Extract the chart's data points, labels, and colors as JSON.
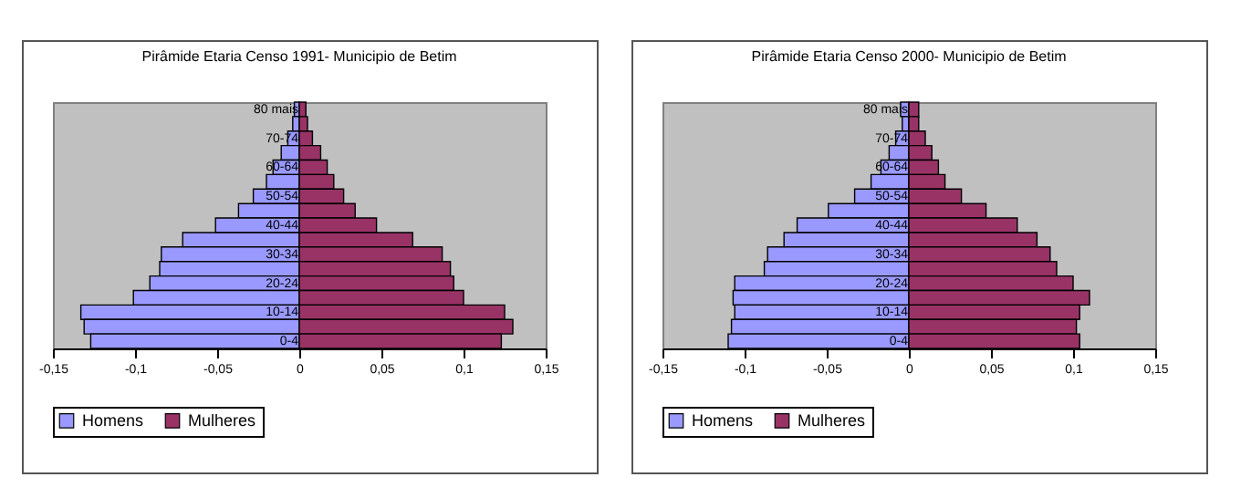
{
  "chart_data": [
    {
      "type": "bar",
      "orientation": "horizontal",
      "stacked": true,
      "title": "Pirâmide Etaria Censo 1991- Municipio de Betim",
      "categories": [
        "80 mais",
        null,
        "70-74",
        null,
        "60-64",
        null,
        "50-54",
        null,
        "40-44",
        null,
        "30-34",
        null,
        "20-24",
        null,
        "10-14",
        null,
        "0-4"
      ],
      "series": [
        {
          "name": "Homens",
          "color": "#9999ff",
          "values": [
            -0.003,
            -0.004,
            -0.007,
            -0.011,
            -0.016,
            -0.02,
            -0.028,
            -0.037,
            -0.051,
            -0.071,
            -0.084,
            -0.085,
            -0.091,
            -0.101,
            -0.133,
            -0.131,
            -0.127
          ]
        },
        {
          "name": "Mulheres",
          "color": "#993366",
          "values": [
            0.004,
            0.005,
            0.008,
            0.013,
            0.017,
            0.021,
            0.027,
            0.034,
            0.047,
            0.069,
            0.087,
            0.092,
            0.094,
            0.1,
            0.125,
            0.13,
            0.123
          ]
        }
      ],
      "xlim": [
        -0.15,
        0.15
      ],
      "xticks": [
        {
          "value": -0.15,
          "label": "-0,15"
        },
        {
          "value": -0.1,
          "label": "-0,1"
        },
        {
          "value": -0.05,
          "label": "-0,05"
        },
        0,
        {
          "value": 0.05,
          "label": "0,05"
        },
        {
          "value": 0.1,
          "label": "0,1"
        },
        {
          "value": 0.15,
          "label": "0,15"
        }
      ],
      "grid": false,
      "legend": "bottom"
    },
    {
      "type": "bar",
      "orientation": "horizontal",
      "stacked": true,
      "title": "Pirâmide Etaria Censo 2000- Municipio de Betim",
      "categories": [
        "80 mais",
        null,
        "70-74",
        null,
        "60-64",
        null,
        "50-54",
        null,
        "40-44",
        null,
        "30-34",
        null,
        "20-24",
        null,
        "10-14",
        null,
        "0-4"
      ],
      "series": [
        {
          "name": "Homens",
          "color": "#9999ff",
          "values": [
            -0.005,
            -0.004,
            -0.008,
            -0.012,
            -0.017,
            -0.023,
            -0.033,
            -0.049,
            -0.068,
            -0.076,
            -0.086,
            -0.088,
            -0.106,
            -0.107,
            -0.106,
            -0.108,
            -0.11
          ]
        },
        {
          "name": "Mulheres",
          "color": "#993366",
          "values": [
            0.006,
            0.006,
            0.01,
            0.014,
            0.018,
            0.022,
            0.032,
            0.047,
            0.066,
            0.078,
            0.086,
            0.09,
            0.1,
            0.11,
            0.104,
            0.102,
            0.104
          ]
        }
      ],
      "xlim": [
        -0.15,
        0.15
      ],
      "xticks": [
        {
          "value": -0.15,
          "label": "-0,15"
        },
        {
          "value": -0.1,
          "label": "-0,1"
        },
        {
          "value": -0.05,
          "label": "-0,05"
        },
        0,
        {
          "value": 0.05,
          "label": "0,05"
        },
        {
          "value": 0.1,
          "label": "0,1"
        },
        {
          "value": 0.15,
          "label": "0,15"
        }
      ],
      "grid": false,
      "legend": "bottom"
    }
  ]
}
